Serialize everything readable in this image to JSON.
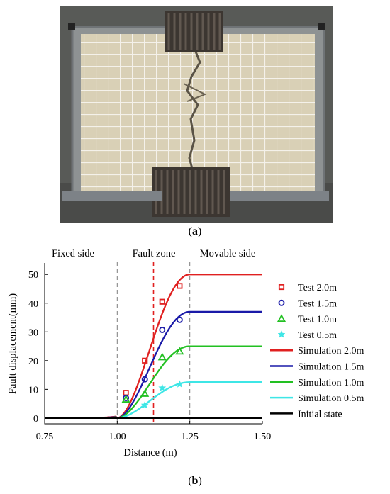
{
  "panel_a": {
    "label_open": "(",
    "label_letter": "a",
    "label_close": ")"
  },
  "panel_b": {
    "label_open": "(",
    "label_letter": "b",
    "label_close": ")"
  },
  "colors": {
    "red": "#e02020",
    "blue": "#1a1aa8",
    "green": "#22c022",
    "cyan": "#3ee6e6",
    "black": "#000000"
  },
  "chart_data": {
    "type": "line",
    "xlabel": "Distance (m)",
    "ylabel": "Fault displacement(mm)",
    "xlim": [
      0.75,
      1.5
    ],
    "ylim": [
      -2,
      54
    ],
    "xticks": [
      "0.75",
      "1.00",
      "1.25",
      "1.50"
    ],
    "yticks": [
      "0",
      "10",
      "20",
      "30",
      "40",
      "50"
    ],
    "grid": false,
    "legend_position": "right",
    "region_labels": [
      "Fixed side",
      "Fault zone",
      "Movable side"
    ],
    "vlines": [
      {
        "x": 1.0,
        "style": "dashed",
        "color": "gray"
      },
      {
        "x": 1.125,
        "style": "dashed",
        "color": "red"
      },
      {
        "x": 1.25,
        "style": "dashed",
        "color": "gray"
      }
    ],
    "simulation": [
      {
        "name": "Simulation 2.0m",
        "plateau": 50,
        "color": "#e02020"
      },
      {
        "name": "Simulation 1.5m",
        "plateau": 37,
        "color": "#1a1aa8"
      },
      {
        "name": "Simulation 1.0m",
        "plateau": 25,
        "color": "#22c022"
      },
      {
        "name": "Simulation 0.5m",
        "plateau": 12.5,
        "color": "#3ee6e6"
      },
      {
        "name": "Initial state",
        "plateau": 0,
        "color": "#000000"
      }
    ],
    "tests": [
      {
        "name": "Test 2.0m",
        "marker": "square",
        "color": "#e02020",
        "points": [
          [
            1.03,
            8.8
          ],
          [
            1.095,
            20
          ],
          [
            1.155,
            40.5
          ],
          [
            1.215,
            46
          ]
        ]
      },
      {
        "name": "Test 1.5m",
        "marker": "circle",
        "color": "#1a1aa8",
        "points": [
          [
            1.03,
            7
          ],
          [
            1.095,
            13.5
          ],
          [
            1.155,
            30.7
          ],
          [
            1.215,
            34.2
          ]
        ]
      },
      {
        "name": "Test 1.0m",
        "marker": "triangle",
        "color": "#22c022",
        "points": [
          [
            1.03,
            6.5
          ],
          [
            1.095,
            8.5
          ],
          [
            1.155,
            21.2
          ],
          [
            1.215,
            23.2
          ]
        ]
      },
      {
        "name": "Test 0.5m",
        "marker": "star",
        "color": "#3ee6e6",
        "points": [
          [
            1.095,
            4.5
          ],
          [
            1.155,
            10.5
          ],
          [
            1.215,
            11.8
          ]
        ]
      }
    ]
  }
}
